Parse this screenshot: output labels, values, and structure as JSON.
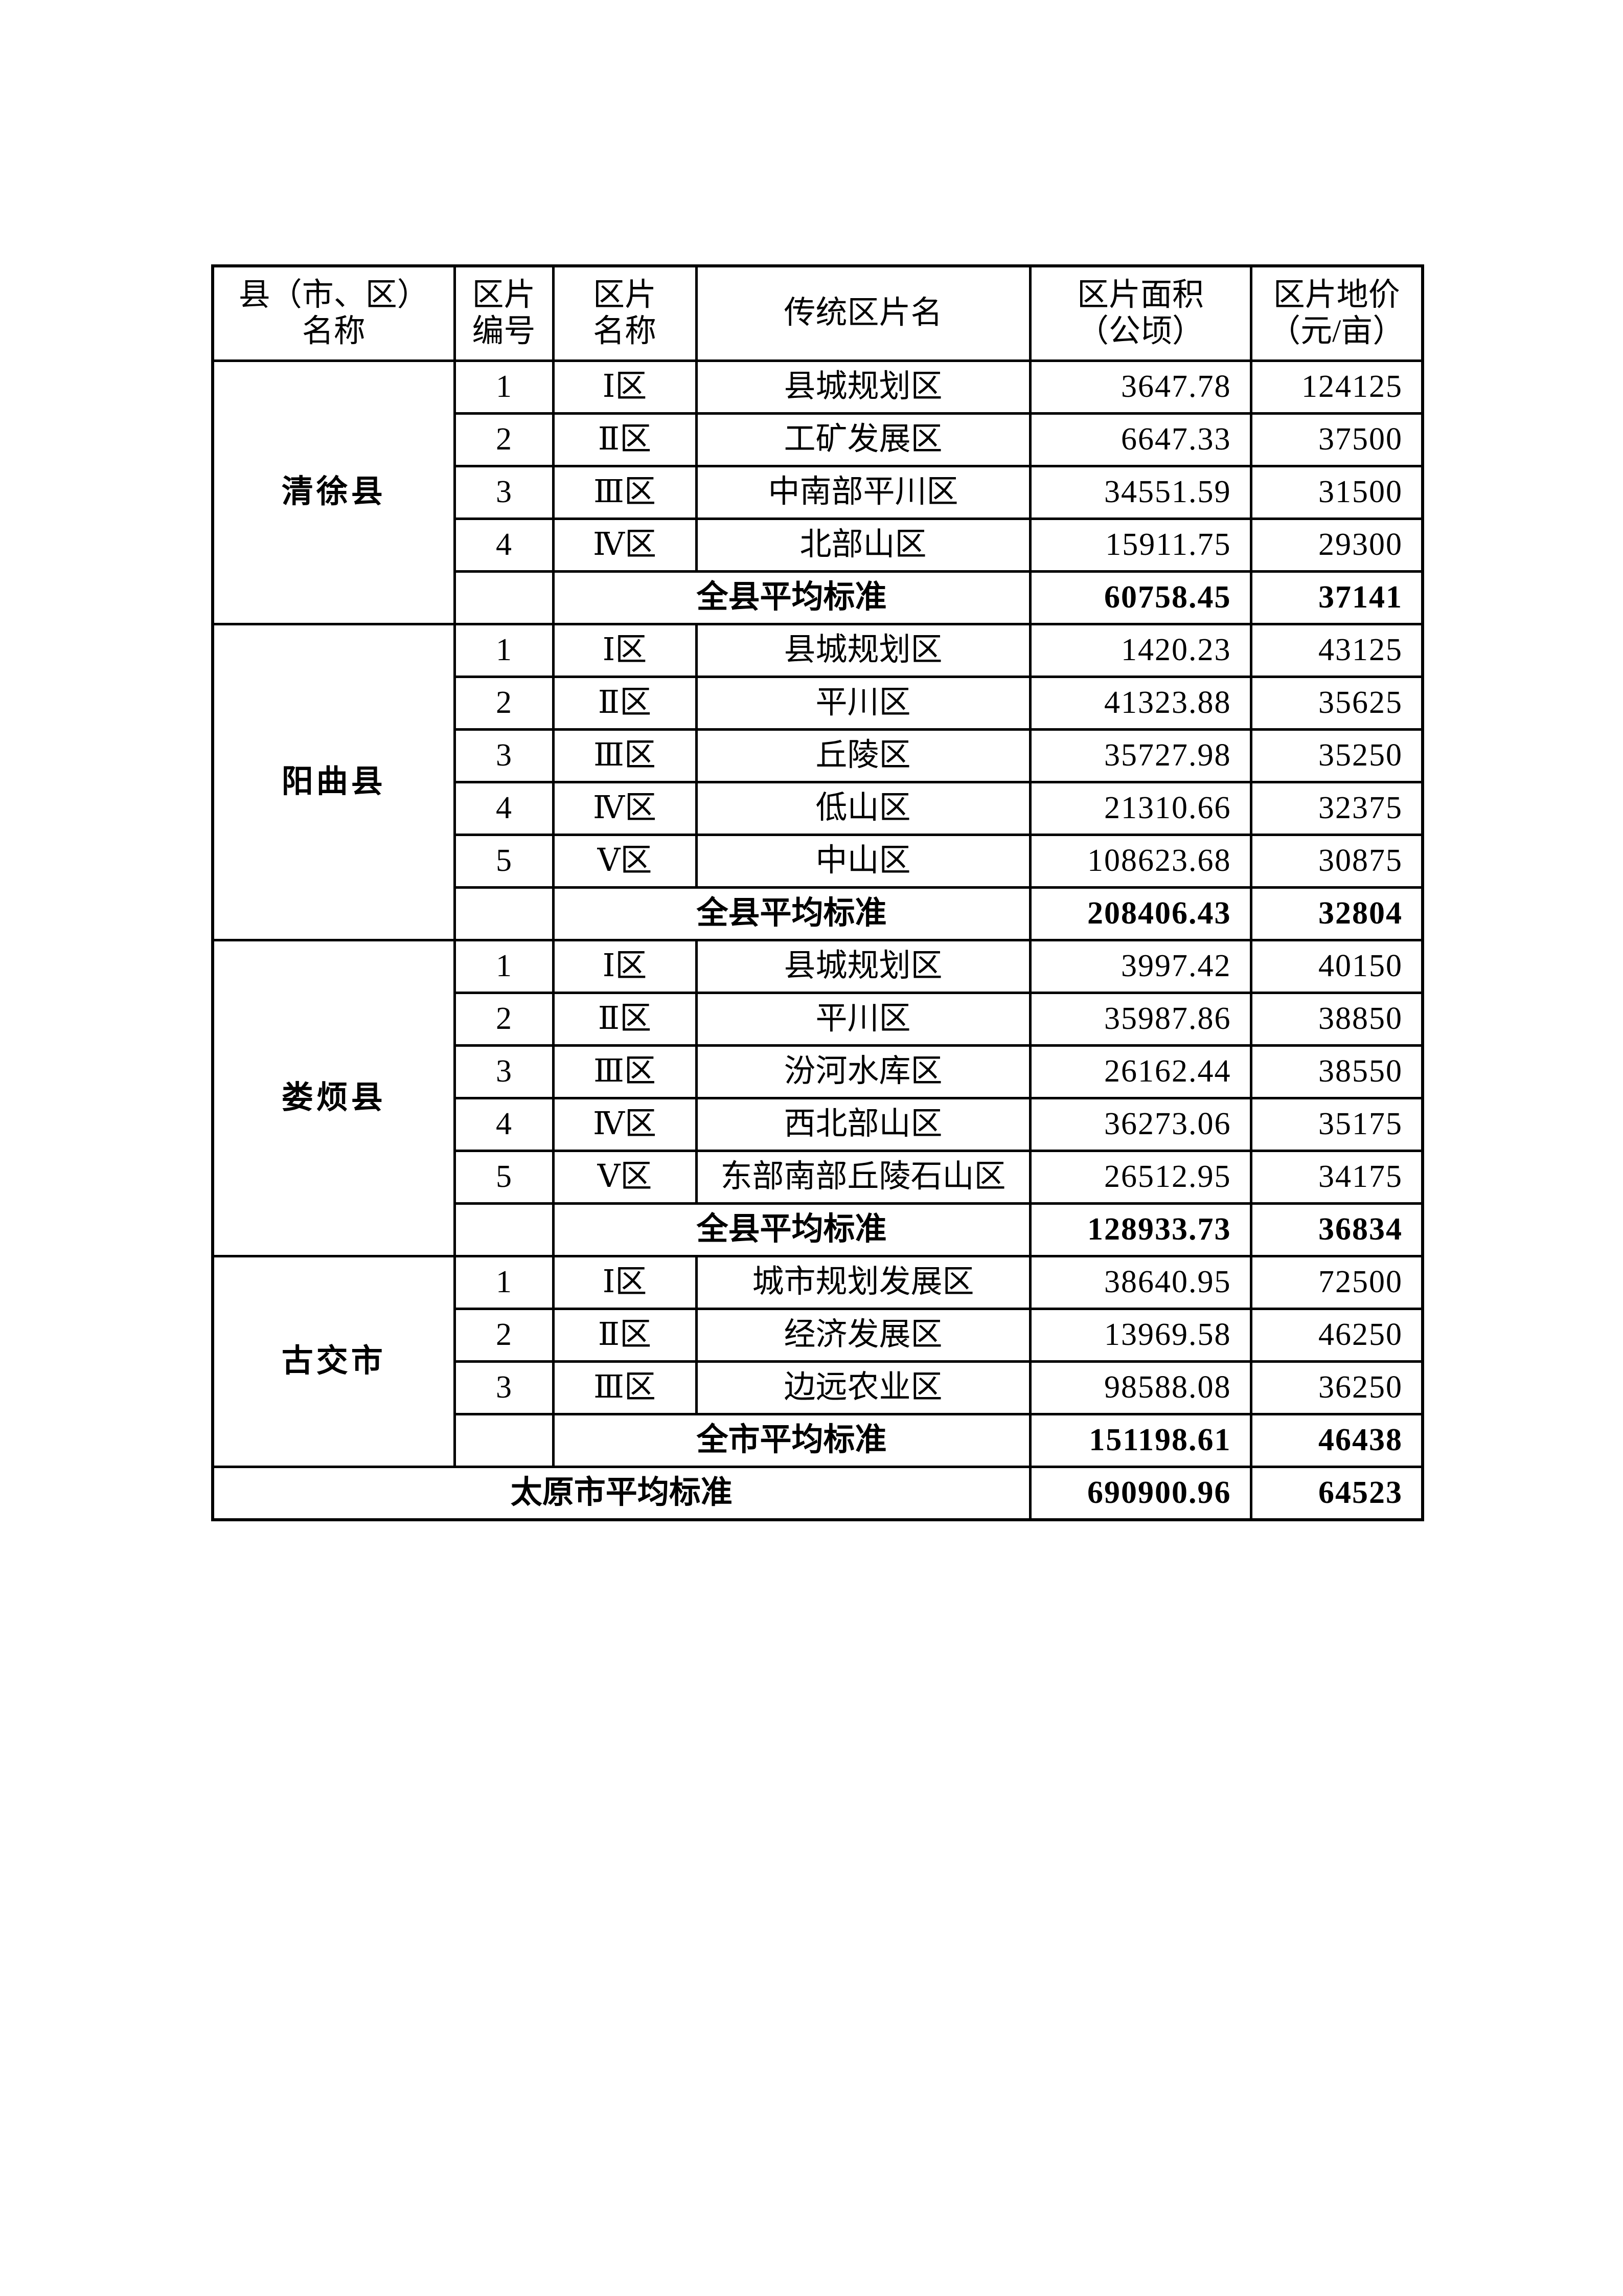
{
  "table": {
    "headers": [
      [
        "县（市、区）",
        "名称"
      ],
      [
        "区片",
        "编号"
      ],
      [
        "区片",
        "名称"
      ],
      [
        "传统区片名"
      ],
      [
        "区片面积",
        "（公顷）"
      ],
      [
        "区片地价",
        "（元/亩）"
      ]
    ],
    "groups": [
      {
        "county": "清徐县",
        "rows": [
          {
            "no": "1",
            "zone": "Ⅰ区",
            "name": "县城规划区",
            "area": "3647.78",
            "price": "124125"
          },
          {
            "no": "2",
            "zone": "Ⅱ区",
            "name": "工矿发展区",
            "area": "6647.33",
            "price": "37500"
          },
          {
            "no": "3",
            "zone": "Ⅲ区",
            "name": "中南部平川区",
            "area": "34551.59",
            "price": "31500"
          },
          {
            "no": "4",
            "zone": "Ⅳ区",
            "name": "北部山区",
            "area": "15911.75",
            "price": "29300"
          }
        ],
        "subtotal": {
          "label": "全县平均标准",
          "area": "60758.45",
          "price": "37141"
        }
      },
      {
        "county": "阳曲县",
        "rows": [
          {
            "no": "1",
            "zone": "Ⅰ区",
            "name": "县城规划区",
            "area": "1420.23",
            "price": "43125"
          },
          {
            "no": "2",
            "zone": "Ⅱ区",
            "name": "平川区",
            "area": "41323.88",
            "price": "35625"
          },
          {
            "no": "3",
            "zone": "Ⅲ区",
            "name": "丘陵区",
            "area": "35727.98",
            "price": "35250"
          },
          {
            "no": "4",
            "zone": "Ⅳ区",
            "name": "低山区",
            "area": "21310.66",
            "price": "32375"
          },
          {
            "no": "5",
            "zone": "Ⅴ区",
            "name": "中山区",
            "area": "108623.68",
            "price": "30875"
          }
        ],
        "subtotal": {
          "label": "全县平均标准",
          "area": "208406.43",
          "price": "32804"
        }
      },
      {
        "county": "娄烦县",
        "rows": [
          {
            "no": "1",
            "zone": "Ⅰ区",
            "name": "县城规划区",
            "area": "3997.42",
            "price": "40150"
          },
          {
            "no": "2",
            "zone": "Ⅱ区",
            "name": "平川区",
            "area": "35987.86",
            "price": "38850"
          },
          {
            "no": "3",
            "zone": "Ⅲ区",
            "name": "汾河水库区",
            "area": "26162.44",
            "price": "38550"
          },
          {
            "no": "4",
            "zone": "Ⅳ区",
            "name": "西北部山区",
            "area": "36273.06",
            "price": "35175"
          },
          {
            "no": "5",
            "zone": "Ⅴ区",
            "name": "东部南部丘陵石山区",
            "area": "26512.95",
            "price": "34175"
          }
        ],
        "subtotal": {
          "label": "全县平均标准",
          "area": "128933.73",
          "price": "36834"
        }
      },
      {
        "county": "古交市",
        "rows": [
          {
            "no": "1",
            "zone": "Ⅰ区",
            "name": "城市规划发展区",
            "area": "38640.95",
            "price": "72500"
          },
          {
            "no": "2",
            "zone": "Ⅱ区",
            "name": "经济发展区",
            "area": "13969.58",
            "price": "46250"
          },
          {
            "no": "3",
            "zone": "Ⅲ区",
            "name": "边远农业区",
            "area": "98588.08",
            "price": "36250"
          }
        ],
        "subtotal": {
          "label": "全市平均标准",
          "area": "151198.61",
          "price": "46438"
        }
      }
    ],
    "total": {
      "label": "太原市平均标准",
      "area": "690900.96",
      "price": "64523"
    }
  }
}
